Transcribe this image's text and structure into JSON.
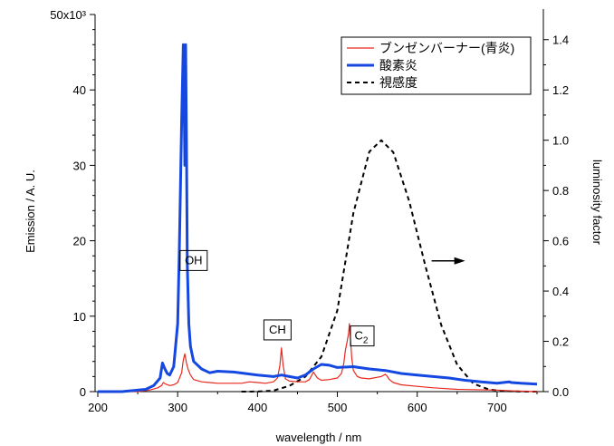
{
  "chart_data": {
    "type": "line",
    "title": "",
    "xlabel": "wavelength / nm",
    "ylabel_left": "Emission / A. U.",
    "ylabel_right": "luminosity factor",
    "xlim": [
      200,
      750
    ],
    "ylim_left": [
      0,
      50000
    ],
    "ylim_right": [
      0,
      1.5
    ],
    "x_ticks": [
      200,
      300,
      400,
      500,
      600,
      700
    ],
    "y_left_ticks": [
      {
        "v": 0,
        "label": "0"
      },
      {
        "v": 10000,
        "label": "10"
      },
      {
        "v": 20000,
        "label": "20"
      },
      {
        "v": 30000,
        "label": "30"
      },
      {
        "v": 40000,
        "label": "40"
      },
      {
        "v": 50000,
        "label": "50x10³"
      }
    ],
    "y_right_ticks": [
      {
        "v": 0.0,
        "label": "0.0"
      },
      {
        "v": 0.2,
        "label": "0.2"
      },
      {
        "v": 0.4,
        "label": "0.4"
      },
      {
        "v": 0.6,
        "label": "0.6"
      },
      {
        "v": 0.8,
        "label": "0.8"
      },
      {
        "v": 1.0,
        "label": "1.0"
      },
      {
        "v": 1.2,
        "label": "1.2"
      },
      {
        "v": 1.4,
        "label": "1.4"
      }
    ],
    "grid": false,
    "legend_position": "top-right",
    "series": [
      {
        "name": "ブンゼンバーナー(青炎)",
        "axis": "left",
        "color": "#e8281e",
        "style": "solid",
        "x": [
          200,
          250,
          265,
          275,
          280,
          282,
          285,
          290,
          295,
          300,
          305,
          307,
          309,
          311,
          313,
          316,
          320,
          330,
          340,
          350,
          360,
          380,
          390,
          400,
          410,
          420,
          425,
          428,
          430,
          432,
          435,
          440,
          450,
          460,
          465,
          470,
          475,
          480,
          490,
          500,
          505,
          508,
          510,
          512,
          514,
          515,
          516,
          518,
          520,
          525,
          530,
          540,
          545,
          550,
          555,
          560,
          562,
          565,
          570,
          580,
          600,
          620,
          650,
          700,
          720,
          750
        ],
        "y": [
          0,
          0,
          200,
          500,
          800,
          1200,
          1000,
          800,
          900,
          1200,
          2500,
          4200,
          5000,
          3800,
          3000,
          2200,
          1600,
          1300,
          1200,
          1100,
          1100,
          1100,
          1300,
          1200,
          1100,
          1300,
          1800,
          3500,
          5800,
          3500,
          1700,
          1400,
          1300,
          1300,
          1600,
          2600,
          1800,
          1500,
          1600,
          1800,
          2400,
          3700,
          5500,
          6500,
          7700,
          9000,
          7600,
          4500,
          2800,
          2000,
          1800,
          1700,
          1800,
          1900,
          2000,
          2300,
          2100,
          1600,
          1200,
          900,
          700,
          500,
          300,
          200,
          100,
          0
        ]
      },
      {
        "name": "酸素炎",
        "axis": "left",
        "color": "#1448e0",
        "style": "solid",
        "x": [
          200,
          230,
          260,
          270,
          278,
          281,
          284,
          287,
          290,
          295,
          300,
          302,
          305,
          307,
          308,
          309,
          310,
          311,
          312,
          314,
          316,
          320,
          330,
          340,
          350,
          370,
          400,
          420,
          430,
          440,
          450,
          460,
          470,
          480,
          490,
          500,
          520,
          540,
          560,
          580,
          600,
          620,
          640,
          660,
          680,
          700,
          715,
          718,
          730,
          750
        ],
        "y": [
          0,
          0,
          300,
          800,
          1800,
          3800,
          3000,
          2400,
          2200,
          3300,
          9000,
          18000,
          36000,
          46000,
          40000,
          30000,
          46000,
          33000,
          17000,
          9000,
          6000,
          4000,
          3000,
          2500,
          2700,
          2600,
          2200,
          2000,
          2200,
          2000,
          1800,
          2200,
          3000,
          3600,
          3500,
          3200,
          3300,
          3000,
          2800,
          2400,
          2200,
          2000,
          1800,
          1500,
          1300,
          1100,
          1300,
          1200,
          1100,
          1000
        ]
      },
      {
        "name": "視感度",
        "axis": "right",
        "color": "#000000",
        "style": "dashed",
        "x": [
          380,
          400,
          420,
          440,
          460,
          480,
          500,
          520,
          540,
          555,
          570,
          590,
          610,
          630,
          650,
          670,
          690,
          710,
          730,
          750
        ],
        "y": [
          0.0,
          0.0004,
          0.004,
          0.023,
          0.06,
          0.139,
          0.323,
          0.71,
          0.954,
          1.0,
          0.952,
          0.757,
          0.503,
          0.265,
          0.107,
          0.032,
          0.008,
          0.002,
          0.0005,
          0.0001
        ]
      }
    ],
    "annotations": [
      {
        "text": "OH",
        "x": 320,
        "y": 17500
      },
      {
        "text": "CH",
        "x": 425,
        "y": 8300
      },
      {
        "text": "C",
        "subscript": "2",
        "x": 530,
        "y": 7500
      }
    ],
    "arrow": {
      "x_start": 618,
      "x_end": 660,
      "y": 0.52,
      "direction": "right"
    }
  }
}
